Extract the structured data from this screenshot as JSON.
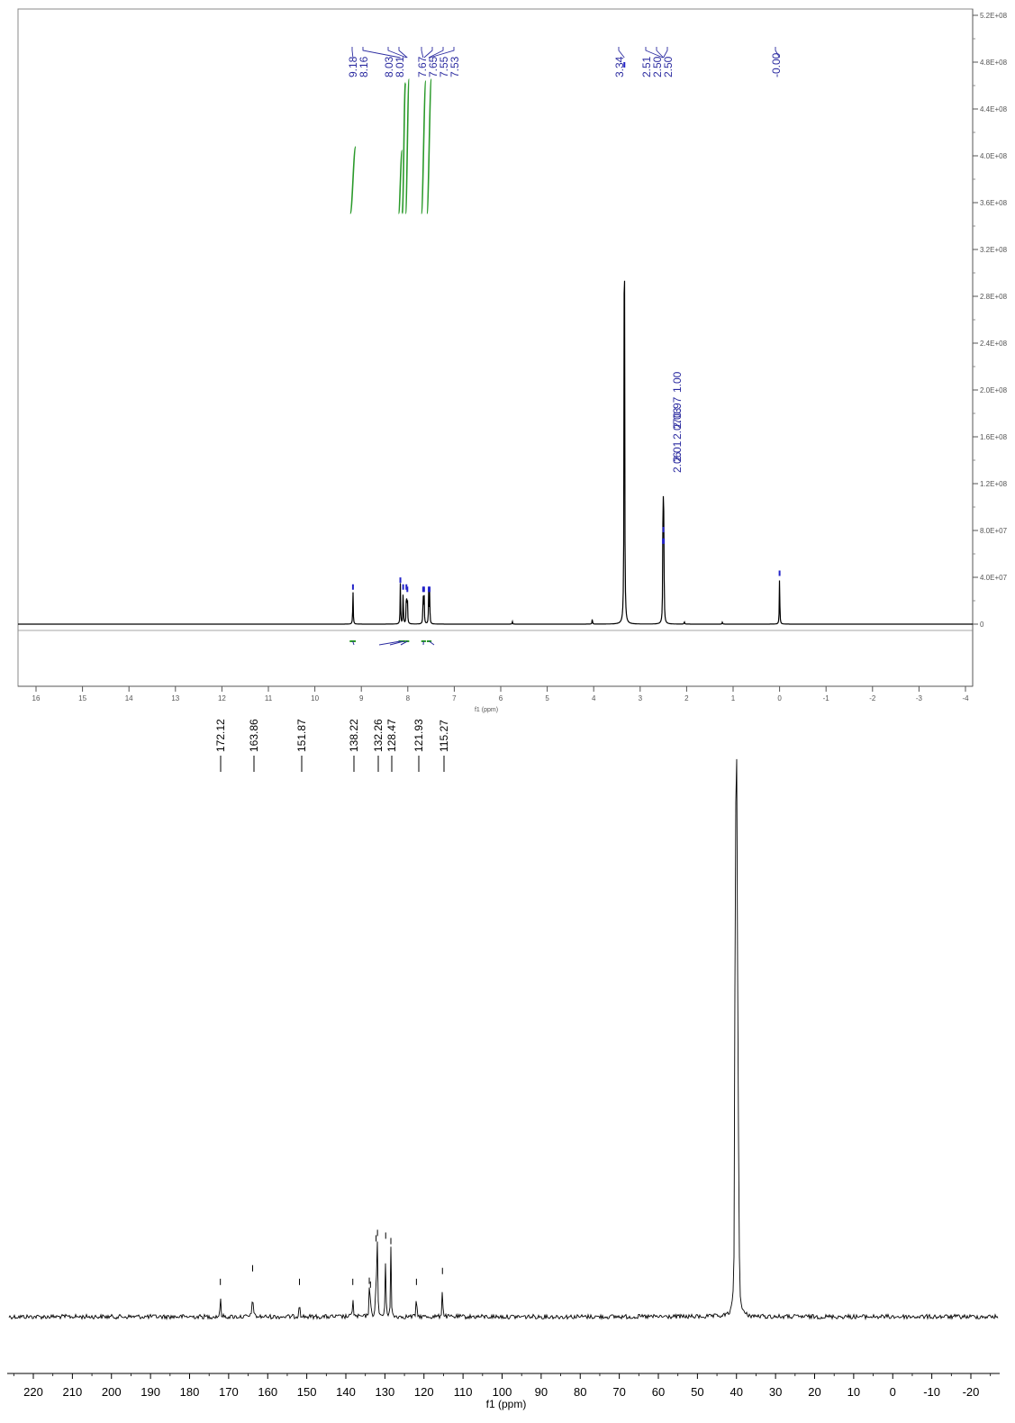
{
  "colors": {
    "spectrum": "#000000",
    "peak_labels_h": "#2b2ba0",
    "integral": "#2a9a2a",
    "peak_marker": "#2323c8"
  },
  "chart_data": [
    {
      "type": "line",
      "name": "1H NMR spectrum",
      "xlabel": "f1 (ppm)",
      "x_direction": "reversed",
      "xlim": [
        16.5,
        -4.0
      ],
      "x_ticks": [
        16,
        15,
        14,
        13,
        12,
        11,
        10,
        9,
        8,
        7,
        6,
        5,
        4,
        3,
        2,
        1,
        0,
        -1,
        -2,
        -3,
        -4
      ],
      "y_ticks": [
        "5.2E+08",
        "4.8E+08",
        "4.4E+08",
        "4.0E+08",
        "3.6E+08",
        "3.2E+08",
        "2.8E+08",
        "2.4E+08",
        "2.0E+08",
        "1.6E+08",
        "1.2E+08",
        "8.0E+07",
        "4.0E+07",
        "0"
      ],
      "ylim": [
        0,
        520000000
      ],
      "peak_labels": [
        "9.18",
        "8.16",
        "8.03",
        "8.01",
        "7.67",
        "7.65",
        "7.55",
        "7.53",
        "3.34",
        "2.51",
        "2.50",
        "2.50",
        "-0.00"
      ],
      "peaks": [
        {
          "x": 9.18,
          "y": 30000000
        },
        {
          "x": 8.16,
          "y": 36000000
        },
        {
          "x": 8.1,
          "y": 30000000
        },
        {
          "x": 8.03,
          "y": 30000000
        },
        {
          "x": 8.01,
          "y": 28000000
        },
        {
          "x": 7.67,
          "y": 28000000
        },
        {
          "x": 7.65,
          "y": 28000000
        },
        {
          "x": 7.55,
          "y": 28000000
        },
        {
          "x": 7.53,
          "y": 28000000
        },
        {
          "x": 4.03,
          "y": 5000000
        },
        {
          "x": 3.34,
          "y": 485000000
        },
        {
          "x": 2.51,
          "y": 70000000
        },
        {
          "x": 2.5,
          "y": 80000000
        },
        {
          "x": 2.49,
          "y": 70000000
        },
        {
          "x": 2.05,
          "y": 2500000
        },
        {
          "x": 1.23,
          "y": 2000000
        },
        {
          "x": 5.75,
          "y": 2500000
        },
        {
          "x": 0.0,
          "y": 42000000
        }
      ],
      "integrals": [
        {
          "from": 9.25,
          "to": 9.12,
          "value": "1.00"
        },
        {
          "from": 8.2,
          "to": 8.12,
          "value": "0.97"
        },
        {
          "from": 8.12,
          "to": 8.05,
          "value": "2.03"
        },
        {
          "from": 8.05,
          "to": 7.97,
          "value": "2.07"
        },
        {
          "from": 7.71,
          "to": 7.61,
          "value": "2.01"
        },
        {
          "from": 7.59,
          "to": 7.49,
          "value": "2.06"
        }
      ]
    },
    {
      "type": "line",
      "name": "13C NMR spectrum",
      "xlabel": "f1 (ppm)",
      "x_direction": "reversed",
      "xlim": [
        225,
        -22
      ],
      "x_ticks": [
        220,
        210,
        200,
        190,
        180,
        170,
        160,
        150,
        140,
        130,
        120,
        110,
        100,
        90,
        80,
        70,
        60,
        50,
        40,
        30,
        20,
        10,
        0,
        -10,
        -20
      ],
      "peak_labels": [
        "172.12",
        "163.86",
        "151.87",
        "138.22",
        "132.26",
        "128.47",
        "121.93",
        "115.27"
      ],
      "peaks": [
        {
          "x": 172.12,
          "y": 0.05
        },
        {
          "x": 163.86,
          "y": 0.075
        },
        {
          "x": 151.87,
          "y": 0.05
        },
        {
          "x": 138.22,
          "y": 0.05
        },
        {
          "x": 134.0,
          "y": 0.052
        },
        {
          "x": 133.7,
          "y": 0.045
        },
        {
          "x": 132.26,
          "y": 0.13
        },
        {
          "x": 131.9,
          "y": 0.14
        },
        {
          "x": 129.8,
          "y": 0.135
        },
        {
          "x": 128.47,
          "y": 0.125
        },
        {
          "x": 121.93,
          "y": 0.05
        },
        {
          "x": 115.27,
          "y": 0.07
        },
        {
          "x": 40.4,
          "y": 0.42
        },
        {
          "x": 40.2,
          "y": 0.68
        },
        {
          "x": 40.0,
          "y": 1.0
        },
        {
          "x": 39.8,
          "y": 0.68
        },
        {
          "x": 39.6,
          "y": 0.42
        },
        {
          "x": 39.4,
          "y": 0.16
        }
      ]
    }
  ]
}
